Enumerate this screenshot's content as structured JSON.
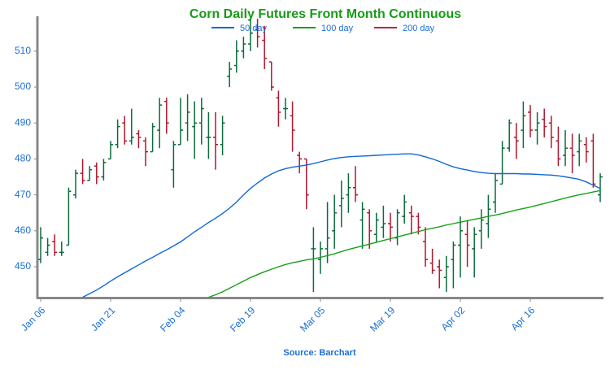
{
  "chart_data": {
    "type": "ohlc",
    "title": "Corn Daily Futures Front Month Continuous",
    "source": "Source: Barchart",
    "categories": [
      "Jan 06",
      null,
      null,
      null,
      null,
      null,
      null,
      null,
      null,
      null,
      "Jan 21",
      null,
      null,
      null,
      null,
      null,
      null,
      null,
      null,
      null,
      "Feb 04",
      null,
      null,
      null,
      null,
      null,
      null,
      null,
      null,
      null,
      "Feb 19",
      null,
      null,
      null,
      null,
      null,
      null,
      null,
      null,
      null,
      "Mar 05",
      null,
      null,
      null,
      null,
      null,
      null,
      null,
      null,
      null,
      "Mar 19",
      null,
      null,
      null,
      null,
      null,
      null,
      null,
      null,
      null,
      "Apr 02",
      null,
      null,
      null,
      null,
      null,
      null,
      null,
      null,
      null,
      "Apr 16",
      null,
      null,
      null,
      null,
      null,
      null,
      null,
      null,
      null,
      null
    ],
    "open": [
      452,
      454,
      457,
      454,
      456,
      470,
      476,
      474,
      478,
      475,
      480,
      484,
      490,
      485,
      487,
      485,
      482,
      488,
      496,
      477,
      484,
      490,
      489,
      490,
      486,
      486,
      484,
      503,
      506,
      510,
      512,
      516,
      513,
      507,
      497,
      494,
      492,
      481,
      480,
      455,
      452,
      455,
      460,
      467,
      470,
      472,
      463,
      465,
      459,
      461,
      462,
      458,
      464,
      465,
      464,
      457,
      451,
      450,
      447,
      452,
      456,
      459,
      455,
      460,
      462,
      468,
      473,
      483,
      486,
      488,
      493,
      488,
      491,
      490,
      485,
      481,
      483,
      482,
      484,
      485,
      470
    ],
    "high": [
      461,
      458,
      459,
      457,
      472,
      477,
      480,
      478,
      479,
      480,
      485,
      491,
      492,
      494,
      488,
      486,
      490,
      497,
      497,
      485,
      497,
      498,
      496,
      497,
      493,
      493,
      492,
      507,
      513,
      514,
      519,
      519,
      517,
      507,
      499,
      497,
      496,
      482,
      480,
      461,
      457,
      468,
      470,
      474,
      476,
      478,
      468,
      466,
      465,
      467,
      465,
      466,
      470,
      467,
      465,
      461,
      455,
      452,
      453,
      457,
      464,
      463,
      461,
      466,
      470,
      476,
      485,
      491,
      490,
      496,
      495,
      493,
      494,
      492,
      489,
      488,
      487,
      487,
      486,
      487,
      476
    ],
    "low": [
      451,
      453,
      453,
      453,
      456,
      469,
      473,
      474,
      473,
      474,
      480,
      483,
      484,
      484,
      483,
      478,
      482,
      483,
      487,
      472,
      484,
      485,
      480,
      484,
      480,
      477,
      481,
      500,
      504,
      508,
      510,
      511,
      505,
      499,
      489,
      491,
      482,
      476,
      466,
      443,
      448,
      451,
      455,
      461,
      465,
      468,
      455,
      455,
      457,
      458,
      457,
      456,
      462,
      459,
      459,
      450,
      448,
      444,
      443,
      444,
      447,
      450,
      447,
      455,
      458,
      465,
      473,
      482,
      480,
      483,
      486,
      484,
      486,
      483,
      478,
      478,
      476,
      478,
      479,
      472,
      468
    ],
    "close": [
      458,
      456,
      454,
      454,
      471,
      476,
      474,
      477,
      475,
      479,
      484,
      489,
      485,
      486,
      486,
      482,
      489,
      495,
      490,
      484,
      488,
      493,
      490,
      494,
      486,
      484,
      490,
      505,
      510,
      512,
      515,
      514,
      508,
      500,
      493,
      494,
      488,
      480,
      470,
      455,
      455,
      458,
      465,
      469,
      472,
      470,
      466,
      460,
      463,
      462,
      461,
      465,
      468,
      464,
      461,
      452,
      449,
      449,
      450,
      456,
      460,
      456,
      459,
      463,
      466,
      474,
      483,
      490,
      485,
      492,
      488,
      490,
      489,
      486,
      480,
      483,
      481,
      485,
      482,
      473,
      475
    ],
    "up_color": "#0b6b3a",
    "down_color": "#b3162e",
    "series": [
      {
        "name": "50 day",
        "color": "#1168d8",
        "values": [
          null,
          null,
          null,
          null,
          null,
          null,
          441.5,
          442.5,
          443.5,
          444.7,
          446,
          447.2,
          448.3,
          449.4,
          450.5,
          451.6,
          452.6,
          453.7,
          454.7,
          455.8,
          456.9,
          458.3,
          459.7,
          461,
          462.3,
          463.5,
          464.8,
          466.3,
          468,
          470,
          471.8,
          473.3,
          474.7,
          475.8,
          476.7,
          477.3,
          477.7,
          478,
          478.3,
          478.7,
          479.2,
          479.7,
          480.1,
          480.4,
          480.6,
          480.7,
          480.8,
          480.9,
          481,
          481.1,
          481.2,
          481.3,
          481.4,
          481.4,
          481.1,
          480.6,
          480,
          479.3,
          478.5,
          477.8,
          477.3,
          476.9,
          476.5,
          476.2,
          476,
          475.9,
          475.9,
          475.9,
          475.9,
          475.8,
          475.8,
          475.7,
          475.6,
          475.5,
          475.3,
          475,
          474.7,
          474.3,
          473.6,
          472.7,
          471.8
        ]
      },
      {
        "name": "100 day",
        "color": "#16a016",
        "values": [
          null,
          null,
          null,
          null,
          null,
          null,
          null,
          null,
          null,
          null,
          null,
          null,
          null,
          null,
          null,
          null,
          null,
          null,
          null,
          null,
          null,
          null,
          null,
          null,
          441.5,
          442.2,
          443,
          444,
          445,
          446,
          447,
          447.8,
          448.6,
          449.3,
          450,
          450.6,
          451.1,
          451.5,
          451.9,
          452.2,
          452.6,
          453.1,
          453.6,
          454.2,
          454.8,
          455.3,
          455.8,
          456.3,
          456.8,
          457.3,
          457.8,
          458.3,
          458.8,
          459.3,
          459.8,
          460.3,
          460.7,
          461.1,
          461.6,
          462,
          462.4,
          462.8,
          463.2,
          463.6,
          464,
          464.4,
          464.8,
          465.3,
          465.8,
          466.2,
          466.6,
          467.1,
          467.6,
          468.1,
          468.6,
          469.1,
          469.6,
          470,
          470.4,
          470.8,
          471.2
        ]
      },
      {
        "name": "200 day",
        "color": "#c2203c",
        "values": [
          null,
          null,
          null,
          null,
          null,
          null,
          null,
          null,
          null,
          null,
          null,
          null,
          null,
          null,
          null,
          null,
          null,
          null,
          null,
          null,
          null,
          null,
          null,
          null,
          null,
          null,
          null,
          null,
          null,
          null,
          null,
          null,
          null,
          null,
          null,
          null,
          null,
          null,
          null,
          null,
          null,
          null,
          null,
          null,
          null,
          null,
          null,
          null,
          null,
          null,
          null,
          null,
          null,
          null,
          null,
          null,
          null,
          null,
          null,
          null,
          null,
          null,
          null,
          null,
          null,
          null,
          null,
          null,
          null,
          null,
          null,
          null,
          null,
          null,
          null,
          null,
          null,
          null,
          null,
          null,
          null
        ]
      }
    ],
    "ylim": [
      441.4,
      519.7
    ],
    "yticks": [
      450,
      460,
      470,
      480,
      490,
      500,
      510
    ]
  }
}
